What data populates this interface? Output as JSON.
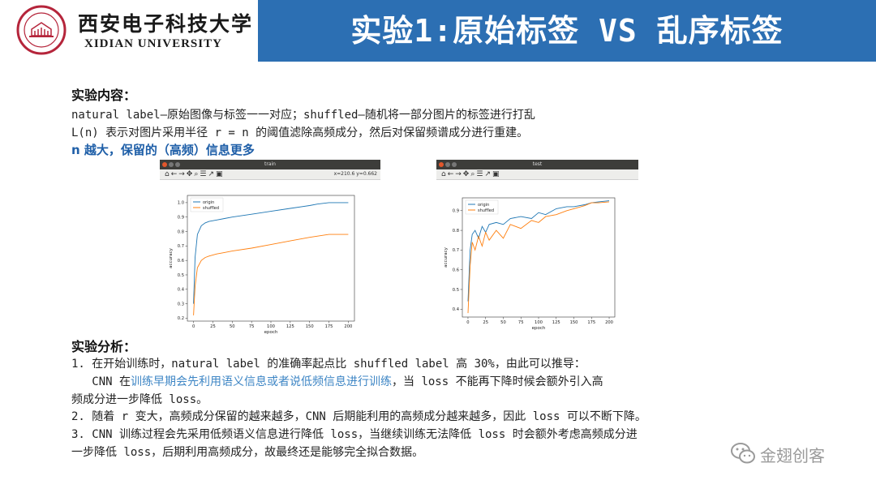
{
  "header": {
    "university_cn": "西安电子科技大学",
    "university_en": "XIDIAN UNIVERSITY",
    "title": "实验1:原始标签 VS 乱序标签",
    "title_bar_color": "#2c6fb3",
    "seal_color": "#b5253b"
  },
  "content": {
    "heading": "实验内容：",
    "lines": [
      "natural label—原始图像与标签一一对应；shuffled—随机将一部分图片的标签进行打乱",
      "L(n) 表示对图片采用半径 r = n 的阈值滤除高频成分，然后对保留频谱成分进行重建。"
    ],
    "highlight": "n 越大，保留的（高频）信息更多"
  },
  "analysis": {
    "heading": "实验分析：",
    "p1_line1": "1. 在开始训练时，natural label 的准确率起点比 shuffled label 高 30%，由此可以推导：",
    "p1_line2_a": "   CNN 在",
    "p1_line2_hl": "训练早期会先利用语义信息或者说低频信息进行训练",
    "p1_line2_b": "，当  loss 不能再下降时候会额外引入高",
    "p1_line3": "频成分进一步降低  loss。",
    "p2": "2. 随着 r 变大，高频成分保留的越来越多，CNN 后期能利用的高频成分越来越多，因此 loss 可以不断下降。",
    "p3_line1": "3. CNN 训练过程会先采用低频语义信息进行降低  loss，当继续训练无法降低  loss 时会额外考虑高频成分进",
    "p3_line2": "一步降低 loss，后期利用高频成分，故最终还是能够完全拟合数据。"
  },
  "watermark": "金翅创客",
  "windows": {
    "train": {
      "title": "train",
      "toolbar_icons": "⌂←→✥⌕☰↗▣",
      "coord": "x=210.6 y=0.662"
    },
    "test": {
      "title": "test",
      "toolbar_icons": "⌂←→✥⌕☰↗▣"
    }
  },
  "chart_data": [
    {
      "type": "line",
      "title": "",
      "xlabel": "epoch",
      "ylabel": "accuracy",
      "xlim": [
        -8,
        208
      ],
      "ylim": [
        0.18,
        1.05
      ],
      "xticks": [
        0,
        25,
        50,
        75,
        100,
        125,
        150,
        175,
        200
      ],
      "yticks": [
        0.2,
        0.3,
        0.4,
        0.5,
        0.6,
        0.7,
        0.8,
        0.9,
        1.0
      ],
      "legend_position": "top-left",
      "series": [
        {
          "name": "origin",
          "color": "#1f77b4",
          "x": [
            0,
            2,
            5,
            10,
            15,
            20,
            30,
            40,
            50,
            75,
            100,
            125,
            150,
            160,
            175,
            200
          ],
          "y": [
            0.3,
            0.62,
            0.78,
            0.84,
            0.86,
            0.87,
            0.88,
            0.89,
            0.9,
            0.92,
            0.94,
            0.96,
            0.98,
            0.99,
            1.0,
            1.0
          ]
        },
        {
          "name": "shuffled",
          "color": "#ff7f0e",
          "x": [
            0,
            2,
            5,
            10,
            15,
            20,
            30,
            40,
            50,
            75,
            100,
            125,
            150,
            175,
            200
          ],
          "y": [
            0.22,
            0.42,
            0.55,
            0.6,
            0.62,
            0.63,
            0.645,
            0.655,
            0.665,
            0.685,
            0.71,
            0.735,
            0.76,
            0.78,
            0.78
          ]
        }
      ]
    },
    {
      "type": "line",
      "title": "",
      "xlabel": "epoch",
      "ylabel": "accuracy",
      "xlim": [
        -8,
        208
      ],
      "ylim": [
        0.36,
        0.965
      ],
      "xticks": [
        0,
        25,
        50,
        75,
        100,
        125,
        150,
        175,
        200
      ],
      "yticks": [
        0.4,
        0.5,
        0.6,
        0.7,
        0.8,
        0.9
      ],
      "legend_position": "top-left",
      "series": [
        {
          "name": "origin",
          "color": "#1f77b4",
          "x": [
            0,
            3,
            6,
            10,
            15,
            20,
            25,
            30,
            40,
            50,
            60,
            75,
            90,
            100,
            110,
            125,
            140,
            150,
            165,
            175,
            185,
            200
          ],
          "y": [
            0.44,
            0.7,
            0.78,
            0.8,
            0.76,
            0.82,
            0.79,
            0.83,
            0.84,
            0.83,
            0.86,
            0.87,
            0.86,
            0.89,
            0.88,
            0.91,
            0.92,
            0.92,
            0.93,
            0.94,
            0.945,
            0.95
          ]
        },
        {
          "name": "shuffled",
          "color": "#ff7f0e",
          "x": [
            0,
            3,
            6,
            10,
            15,
            20,
            25,
            30,
            40,
            50,
            60,
            75,
            90,
            100,
            110,
            125,
            140,
            150,
            165,
            175,
            185,
            200
          ],
          "y": [
            0.38,
            0.62,
            0.74,
            0.7,
            0.77,
            0.72,
            0.79,
            0.75,
            0.8,
            0.76,
            0.83,
            0.81,
            0.85,
            0.84,
            0.87,
            0.88,
            0.9,
            0.91,
            0.925,
            0.94,
            0.94,
            0.945
          ]
        }
      ]
    }
  ]
}
